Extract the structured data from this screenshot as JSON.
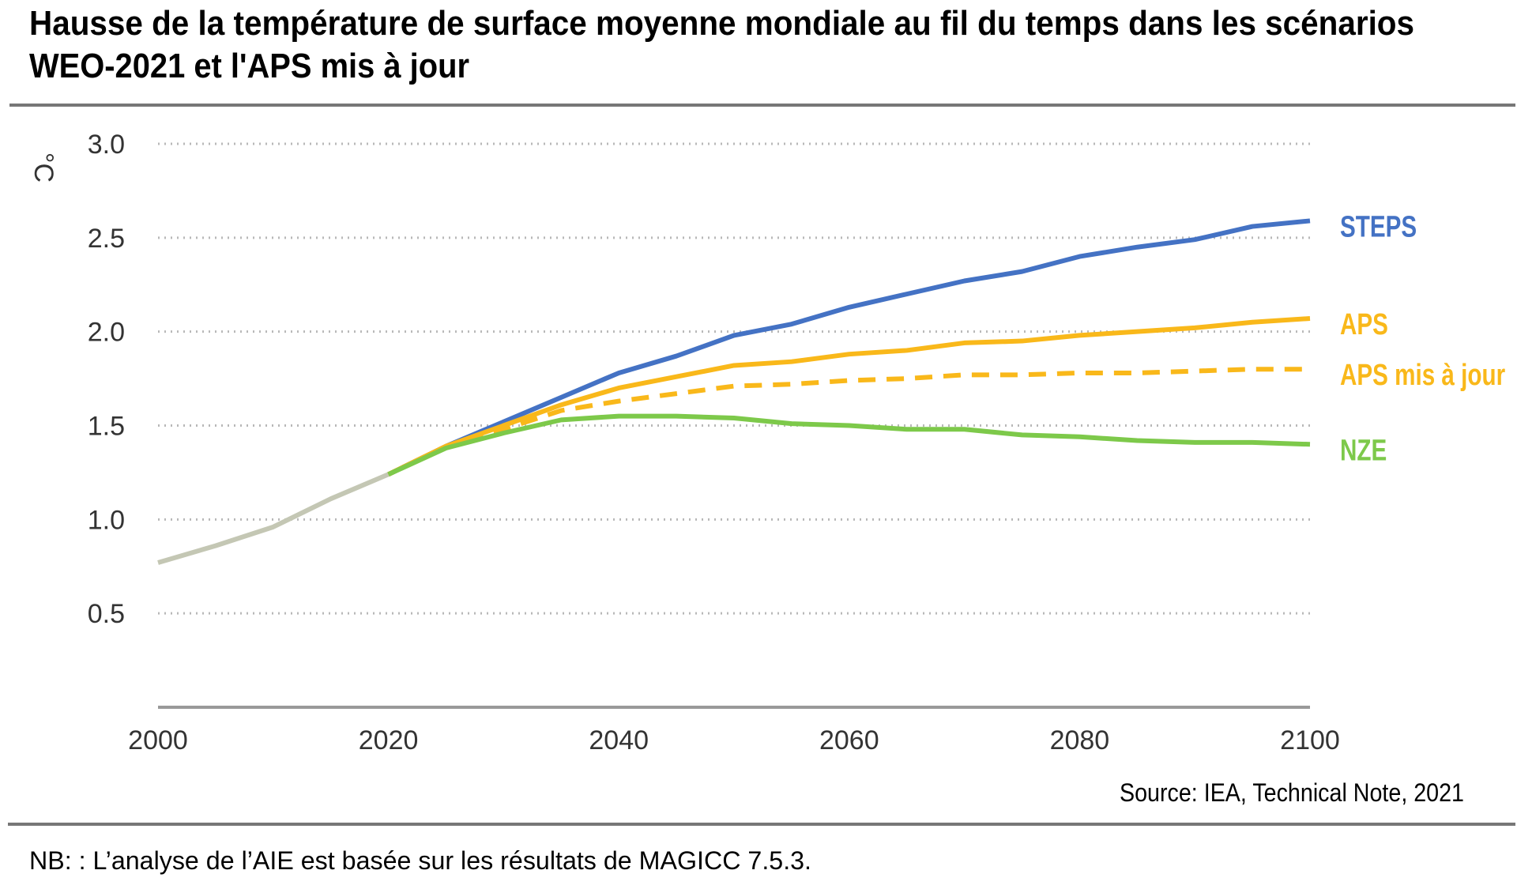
{
  "chart_data": {
    "type": "line",
    "title": [
      "Hausse de la température de surface moyenne mondiale au fil du temps dans les scénarios",
      "WEO-2021 et l'APS mis à jour"
    ],
    "y_label": "°C",
    "source": "Source: IEA, Technical Note, 2021",
    "note": "NB: : L’analyse de l’AIE est basée sur les résultats de MAGICC 7.5.3.",
    "x": [
      2000,
      2005,
      2010,
      2015,
      2020,
      2025,
      2030,
      2035,
      2040,
      2045,
      2050,
      2055,
      2060,
      2065,
      2070,
      2075,
      2080,
      2085,
      2090,
      2095,
      2100
    ],
    "xlim": [
      2000,
      2100
    ],
    "xticks": [
      2000,
      2020,
      2040,
      2060,
      2080,
      2100
    ],
    "ylim": [
      0,
      3
    ],
    "yticks": [
      0.5,
      {
        "value": 1,
        "label": "1.0"
      },
      1.5,
      {
        "value": 2,
        "label": "2.0"
      },
      2.5,
      {
        "value": 3,
        "label": "3.0"
      }
    ],
    "grid": true,
    "series": [
      {
        "color": "#c4c7b4",
        "dash": false,
        "values": [
          0.77,
          0.86,
          0.96,
          1.11,
          1.24,
          null,
          null,
          null,
          null,
          null,
          null,
          null,
          null,
          null,
          null,
          null,
          null,
          null,
          null,
          null,
          null
        ]
      },
      {
        "name": "STEPS",
        "color": "#4472c4",
        "dash": false,
        "values": [
          null,
          null,
          null,
          null,
          1.24,
          1.39,
          1.52,
          1.65,
          1.78,
          1.87,
          1.98,
          2.04,
          2.13,
          2.2,
          2.27,
          2.32,
          2.4,
          2.45,
          2.49,
          2.56,
          2.59
        ]
      },
      {
        "name": "APS",
        "color": "#f9b81a",
        "dash": false,
        "values": [
          null,
          null,
          null,
          null,
          1.24,
          1.39,
          1.5,
          1.61,
          1.7,
          1.76,
          1.82,
          1.84,
          1.88,
          1.9,
          1.94,
          1.95,
          1.98,
          2.0,
          2.02,
          2.05,
          2.07
        ]
      },
      {
        "name": "APS mis à jour",
        "color": "#f9b81a",
        "dash": true,
        "values": [
          null,
          null,
          null,
          null,
          1.24,
          1.39,
          1.48,
          1.58,
          1.63,
          1.67,
          1.71,
          1.72,
          1.74,
          1.75,
          1.77,
          1.77,
          1.78,
          1.78,
          1.79,
          1.8,
          1.8
        ]
      },
      {
        "name": "NZE",
        "color": "#7dc94a",
        "dash": false,
        "values": [
          null,
          null,
          null,
          null,
          1.24,
          1.38,
          1.46,
          1.53,
          1.55,
          1.55,
          1.54,
          1.51,
          1.5,
          1.48,
          1.48,
          1.45,
          1.44,
          1.42,
          1.41,
          1.41,
          1.4
        ]
      }
    ]
  }
}
